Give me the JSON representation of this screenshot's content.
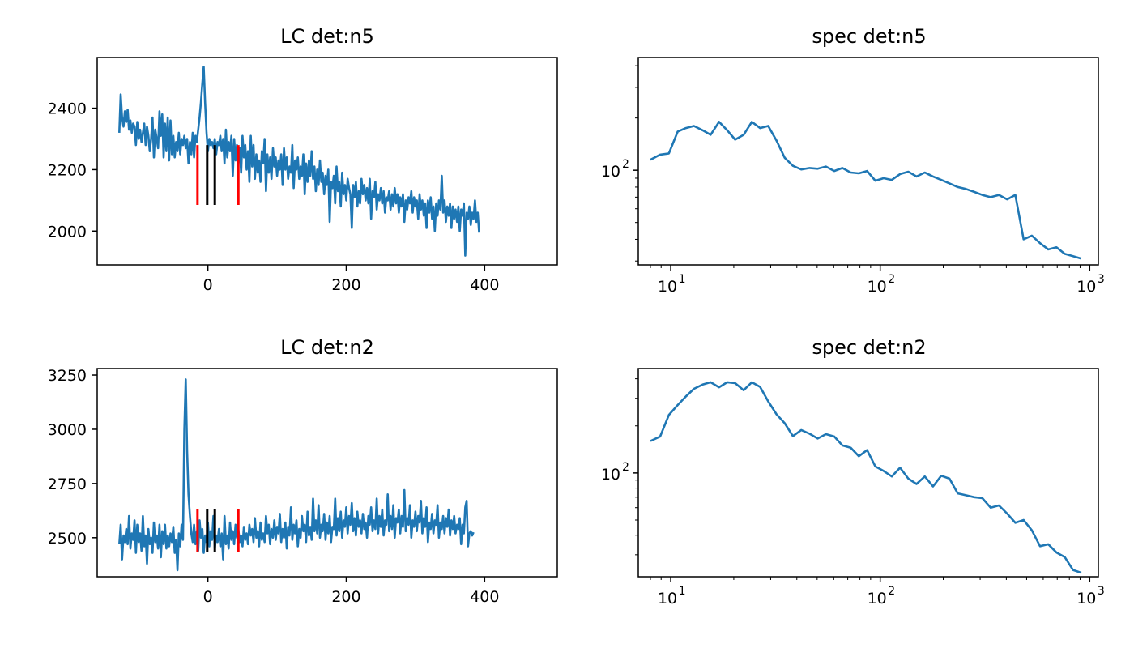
{
  "colors": {
    "series": "#1f77b4",
    "outer_marker": "#ff0000",
    "inner_marker": "#000000",
    "axes": "#000000"
  },
  "chart_data": [
    {
      "type": "line",
      "title": "LC det:n5",
      "xlabel": "",
      "ylabel": "",
      "xlim": [
        -160,
        505
      ],
      "ylim": [
        1890,
        2565
      ],
      "xticks": [
        0,
        200,
        400
      ],
      "yticks": [
        2000,
        2200,
        2400
      ],
      "x_start": -128,
      "x_step": 2,
      "y": [
        2320,
        2445,
        2370,
        2340,
        2390,
        2355,
        2395,
        2330,
        2360,
        2320,
        2350,
        2340,
        2280,
        2355,
        2300,
        2330,
        2290,
        2320,
        2350,
        2280,
        2340,
        2310,
        2260,
        2300,
        2370,
        2240,
        2330,
        2300,
        2270,
        2390,
        2310,
        2380,
        2240,
        2350,
        2260,
        2370,
        2230,
        2360,
        2250,
        2310,
        2240,
        2290,
        2260,
        2320,
        2250,
        2300,
        2280,
        2310,
        2270,
        2300,
        2220,
        2290,
        2250,
        2320,
        2240,
        2310,
        2290,
        2330,
        2370,
        2420,
        2480,
        2535,
        2420,
        2320,
        2260,
        2300,
        2280,
        2290,
        2270,
        2300,
        2250,
        2290,
        2280,
        2310,
        2260,
        2300,
        2220,
        2330,
        2240,
        2290,
        2260,
        2310,
        2180,
        2300,
        2230,
        2280,
        2220,
        2270,
        2190,
        2310,
        2240,
        2280,
        2200,
        2260,
        2160,
        2310,
        2210,
        2280,
        2170,
        2250,
        2190,
        2230,
        2160,
        2260,
        2220,
        2300,
        2130,
        2250,
        2190,
        2240,
        2170,
        2270,
        2210,
        2240,
        2180,
        2230,
        2200,
        2250,
        2150,
        2270,
        2200,
        2240,
        2170,
        2210,
        2190,
        2280,
        2140,
        2230,
        2200,
        2240,
        2170,
        2210,
        2180,
        2250,
        2120,
        2220,
        2160,
        2230,
        2180,
        2260,
        2170,
        2210,
        2130,
        2200,
        2150,
        2230,
        2160,
        2190,
        2120,
        2180,
        2150,
        2200,
        2030,
        2160,
        2140,
        2180,
        2090,
        2210,
        2130,
        2160,
        2080,
        2190,
        2120,
        2150,
        2100,
        2170,
        2140,
        2120,
        2010,
        2150,
        2110,
        2160,
        2080,
        2130,
        2090,
        2170,
        2120,
        2150,
        2100,
        2140,
        2090,
        2170,
        2040,
        2130,
        2110,
        2160,
        2070,
        2120,
        2100,
        2140,
        2090,
        2130,
        2060,
        2110,
        2100,
        2130,
        2070,
        2120,
        2080,
        2140,
        2090,
        2120,
        2060,
        2110,
        2080,
        2120,
        2030,
        2100,
        2070,
        2110,
        2090,
        2130,
        2060,
        2110,
        2080,
        2100,
        2040,
        2120,
        2070,
        2100,
        2050,
        2090,
        2010,
        2100,
        2060,
        2110,
        2040,
        2080,
        2000,
        2090,
        2050,
        2100,
        2070,
        2180,
        2060,
        2100,
        2030,
        2080,
        2050,
        2090,
        2010,
        2080,
        2040,
        2070,
        2030,
        2080,
        2000,
        2070,
        2050,
        2090,
        1920,
        2060,
        2040,
        2080,
        2020,
        2060,
        2040,
        2100,
        2030,
        2060,
        1995
      ],
      "markers": [
        {
          "x": -15,
          "y1": 2085,
          "y2": 2280,
          "color": "red"
        },
        {
          "x": -1,
          "y1": 2085,
          "y2": 2280,
          "color": "black"
        },
        {
          "x": 10,
          "y1": 2085,
          "y2": 2280,
          "color": "black"
        },
        {
          "x": 44,
          "y1": 2085,
          "y2": 2280,
          "color": "red"
        }
      ]
    },
    {
      "type": "line",
      "title": "spec det:n5",
      "xlabel": "",
      "ylabel": "",
      "xscale": "log",
      "yscale": "log",
      "xlim": [
        7,
        1100
      ],
      "ylim": [
        28.5,
        446
      ],
      "xticks": [
        10,
        100,
        1000
      ],
      "xtick_bases": [
        "10",
        "10",
        "10"
      ],
      "xtick_exponents": [
        "1",
        "2",
        "3"
      ],
      "yticks": [
        100
      ],
      "ytick_bases": [
        "10"
      ],
      "ytick_exponents": [
        "2"
      ],
      "x": [
        8,
        8.9,
        9.8,
        10.8,
        11.8,
        12.9,
        14.2,
        15.5,
        17.0,
        18.6,
        20.3,
        22.3,
        24.4,
        26.7,
        29.2,
        32.0,
        35.0,
        38.3,
        42.0,
        46.0,
        50.3,
        55.1,
        60.3,
        66.0,
        72.3,
        79.1,
        86.6,
        94.8,
        103.8,
        113.6,
        124.4,
        136.2,
        149.1,
        163.2,
        178.7,
        195.6,
        214.1,
        234.4,
        256.6,
        280.9,
        307.5,
        336.7,
        368.6,
        403.5,
        441.7,
        483.6,
        529.4,
        579.5,
        634.4,
        694.5,
        760.3,
        832.4,
        911.2
      ],
      "y": [
        115,
        123,
        125,
        167,
        175,
        180,
        170,
        160,
        190,
        170,
        150,
        160,
        190,
        175,
        180,
        148,
        118,
        106,
        101,
        103,
        102,
        105,
        99,
        103,
        97,
        96,
        99,
        87,
        90,
        88,
        95,
        98,
        92,
        97,
        92,
        88,
        84,
        80,
        78,
        75,
        72,
        70,
        72,
        68,
        72,
        40,
        42,
        38,
        35,
        36,
        33,
        32,
        31
      ]
    },
    {
      "type": "line",
      "title": "LC det:n2",
      "xlabel": "",
      "ylabel": "",
      "xlim": [
        -160,
        505
      ],
      "ylim": [
        2320,
        3280
      ],
      "xticks": [
        0,
        200,
        400
      ],
      "yticks": [
        2500,
        2750,
        3000,
        3250
      ],
      "x_start": -128,
      "x_step": 2,
      "y": [
        2470,
        2560,
        2400,
        2510,
        2480,
        2540,
        2470,
        2600,
        2450,
        2520,
        2490,
        2580,
        2430,
        2560,
        2480,
        2520,
        2440,
        2600,
        2460,
        2510,
        2380,
        2540,
        2470,
        2500,
        2430,
        2570,
        2480,
        2510,
        2450,
        2560,
        2410,
        2530,
        2470,
        2560,
        2450,
        2510,
        2460,
        2520,
        2480,
        2550,
        2430,
        2490,
        2350,
        2520,
        2460,
        2560,
        2490,
        3000,
        3230,
        2900,
        2700,
        2600,
        2520,
        2480,
        2560,
        2470,
        2530,
        2440,
        2580,
        2500,
        2540,
        2430,
        2510,
        2480,
        2570,
        2460,
        2530,
        2490,
        2600,
        2450,
        2510,
        2480,
        2540,
        2460,
        2520,
        2400,
        2600,
        2470,
        2510,
        2450,
        2570,
        2490,
        2530,
        2470,
        2560,
        2500,
        2540,
        2480,
        2510,
        2460,
        2550,
        2490,
        2520,
        2470,
        2560,
        2510,
        2540,
        2480,
        2590,
        2500,
        2530,
        2460,
        2570,
        2490,
        2520,
        2480,
        2600,
        2520,
        2560,
        2470,
        2540,
        2500,
        2580,
        2490,
        2550,
        2520,
        2610,
        2480,
        2540,
        2500,
        2570,
        2450,
        2550,
        2510,
        2640,
        2490,
        2560,
        2520,
        2580,
        2460,
        2540,
        2500,
        2600,
        2530,
        2560,
        2480,
        2620,
        2510,
        2550,
        2490,
        2680,
        2530,
        2580,
        2520,
        2650,
        2500,
        2560,
        2530,
        2610,
        2490,
        2570,
        2520,
        2600,
        2480,
        2550,
        2540,
        2680,
        2510,
        2590,
        2530,
        2620,
        2500,
        2580,
        2550,
        2640,
        2520,
        2600,
        2560,
        2660,
        2530,
        2590,
        2510,
        2620,
        2550,
        2580,
        2520,
        2610,
        2540,
        2570,
        2500,
        2600,
        2560,
        2640,
        2530,
        2580,
        2540,
        2680,
        2520,
        2600,
        2550,
        2630,
        2510,
        2580,
        2560,
        2700,
        2530,
        2600,
        2540,
        2650,
        2500,
        2590,
        2570,
        2630,
        2520,
        2600,
        2550,
        2720,
        2530,
        2590,
        2560,
        2650,
        2500,
        2580,
        2550,
        2620,
        2530,
        2600,
        2570,
        2670,
        2520,
        2590,
        2550,
        2640,
        2480,
        2570,
        2540,
        2610,
        2520,
        2580,
        2560,
        2650,
        2500,
        2570,
        2540,
        2600,
        2520,
        2590,
        2550,
        2630,
        2510,
        2580,
        2540,
        2600,
        2520,
        2560,
        2540,
        2590,
        2470,
        2560,
        2520,
        2640,
        2670,
        2460,
        2520,
        2530,
        2510,
        2525
      ],
      "markers": [
        {
          "x": -15,
          "y1": 2435,
          "y2": 2630,
          "color": "red"
        },
        {
          "x": -1,
          "y1": 2435,
          "y2": 2630,
          "color": "black"
        },
        {
          "x": 10,
          "y1": 2435,
          "y2": 2630,
          "color": "black"
        },
        {
          "x": 44,
          "y1": 2435,
          "y2": 2630,
          "color": "red"
        }
      ]
    },
    {
      "type": "line",
      "title": "spec det:n2",
      "xlabel": "",
      "ylabel": "",
      "xscale": "log",
      "yscale": "log",
      "xlim": [
        7,
        1100
      ],
      "ylim": [
        21.7,
        465
      ],
      "xticks": [
        10,
        100,
        1000
      ],
      "xtick_bases": [
        "10",
        "10",
        "10"
      ],
      "xtick_exponents": [
        "1",
        "2",
        "3"
      ],
      "yticks": [
        100
      ],
      "ytick_bases": [
        "10"
      ],
      "ytick_exponents": [
        "2"
      ],
      "x": [
        8,
        8.9,
        9.8,
        10.8,
        11.8,
        12.9,
        14.2,
        15.5,
        17.0,
        18.6,
        20.3,
        22.3,
        24.4,
        26.7,
        29.2,
        32.0,
        35.0,
        38.3,
        42.0,
        46.0,
        50.3,
        55.1,
        60.3,
        66.0,
        72.3,
        79.1,
        86.6,
        94.8,
        103.8,
        113.6,
        124.4,
        136.2,
        149.1,
        163.2,
        178.7,
        195.6,
        214.1,
        234.4,
        256.6,
        280.9,
        307.5,
        336.7,
        368.6,
        403.5,
        441.7,
        483.6,
        529.4,
        579.5,
        634.4,
        694.5,
        760.3,
        832.4,
        911.2
      ],
      "y": [
        160,
        171,
        235,
        272,
        308,
        345,
        367,
        380,
        353,
        380,
        375,
        338,
        380,
        355,
        287,
        237,
        208,
        172,
        188,
        178,
        166,
        177,
        171,
        150,
        145,
        128,
        140,
        110,
        103,
        95,
        108,
        92,
        85,
        95,
        82,
        96,
        92,
        74,
        72,
        70,
        69,
        60,
        62,
        55,
        48,
        50,
        43,
        34,
        35,
        31,
        29,
        24,
        23
      ]
    }
  ]
}
